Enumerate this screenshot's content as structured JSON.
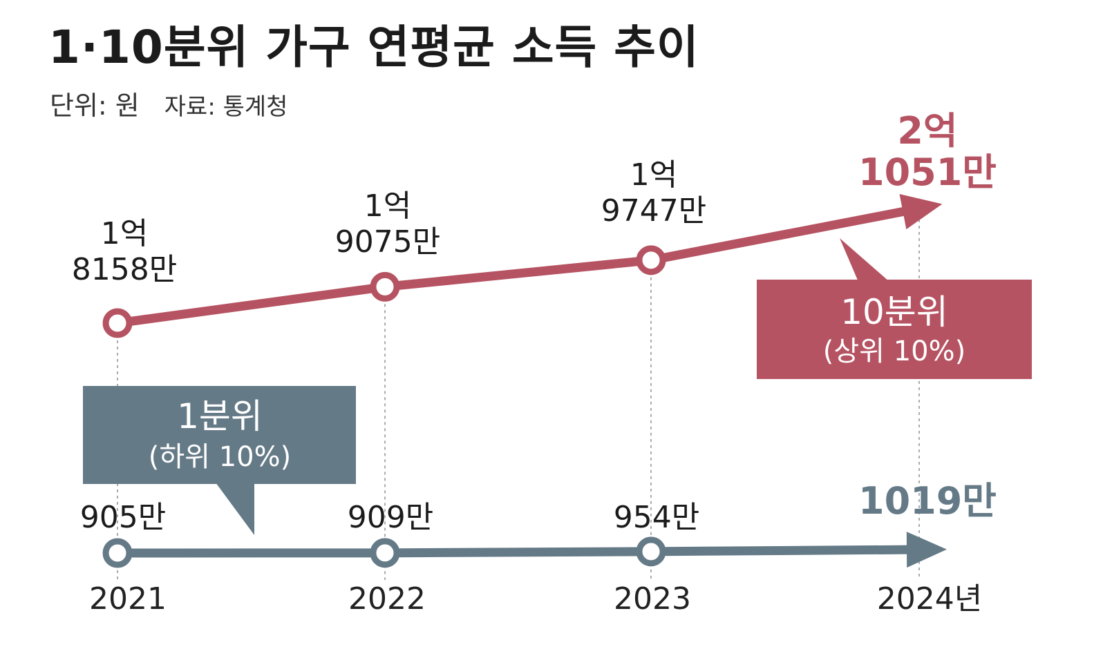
{
  "title": "1·10분위 가구 연평균 소득 추이",
  "unit": "단위: 원",
  "source": "자료: 통계청",
  "colors": {
    "top": "#b65362",
    "bottom": "#657a87",
    "text": "#1b1b1b",
    "grid": "#aaaaaa"
  },
  "chart_data": {
    "type": "line",
    "x": [
      "2021",
      "2022",
      "2023",
      "2024"
    ],
    "x_tick_labels": [
      "2021",
      "2022",
      "2023",
      "2024년"
    ],
    "grid": false,
    "series": [
      {
        "name": "10분위 (상위 10%)",
        "label_line1": "10분위",
        "label_line2": "(상위 10%)",
        "values": [
          181580000,
          190750000,
          197470000,
          210510000
        ],
        "labels": [
          [
            "1억",
            "8158만"
          ],
          [
            "1억",
            "9075만"
          ],
          [
            "1억",
            "9747만"
          ],
          [
            "2억",
            "1051만"
          ]
        ]
      },
      {
        "name": "1분위 (하위 10%)",
        "label_line1": "1분위",
        "label_line2": "(하위 10%)",
        "values": [
          9050000,
          9090000,
          9540000,
          10190000
        ],
        "labels": [
          [
            "905만"
          ],
          [
            "909만"
          ],
          [
            "954만"
          ],
          [
            "1019만"
          ]
        ]
      }
    ]
  }
}
